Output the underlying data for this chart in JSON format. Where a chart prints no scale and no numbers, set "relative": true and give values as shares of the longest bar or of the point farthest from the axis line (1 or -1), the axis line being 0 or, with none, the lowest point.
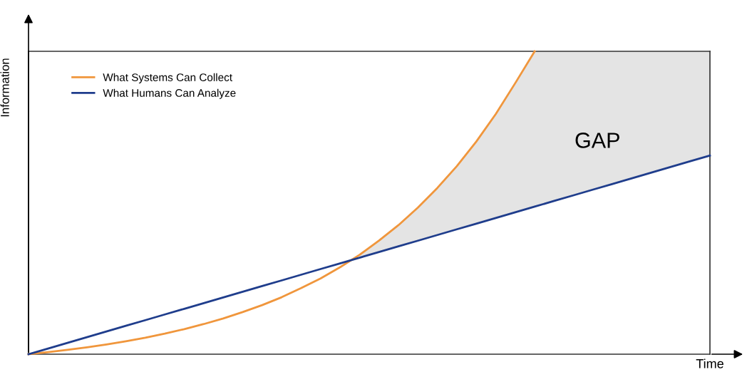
{
  "chart_data": {
    "type": "line",
    "relative": true,
    "xlabel": "Time",
    "ylabel": "Information",
    "categories": [
      null,
      null,
      null,
      null,
      null,
      null,
      null,
      null,
      null,
      null,
      null,
      null,
      null,
      null,
      null,
      null,
      null,
      null,
      null,
      null,
      null,
      null,
      null,
      null,
      null,
      null,
      null,
      null,
      null,
      null,
      null,
      null,
      null,
      null,
      null,
      null
    ],
    "series": [
      {
        "name": "What Systems Can Collect",
        "color": "#f0963c",
        "values": [
          0,
          0.0067,
          0.0143,
          0.0227,
          0.0321,
          0.0427,
          0.0545,
          0.0679,
          0.0828,
          0.0995,
          0.118,
          0.139,
          0.162,
          0.188,
          0.218,
          0.25,
          0.287,
          0.328,
          0.375,
          0.426,
          0.484,
          0.549,
          0.621,
          0.702,
          0.793,
          0.895,
          1.0,
          null,
          null,
          null,
          null,
          null,
          null,
          null,
          null,
          null
        ]
      },
      {
        "name": "What Humans Can Analyze",
        "color": "#1f3d8c",
        "values": [
          0,
          0.0187,
          0.0375,
          0.0562,
          0.075,
          0.0937,
          0.1124,
          0.1312,
          0.1499,
          0.1687,
          0.1874,
          0.2061,
          0.2249,
          0.2436,
          0.2624,
          0.2811,
          0.2998,
          0.3186,
          0.3373,
          0.3561,
          0.3748,
          0.3935,
          0.4123,
          0.431,
          0.4498,
          0.4685,
          0.4872,
          0.506,
          0.5247,
          0.5435,
          0.5622,
          0.5809,
          0.5997,
          0.6184,
          0.6372,
          0.656
        ],
        "lower": [
          null,
          null,
          null,
          null,
          null,
          null,
          null,
          null,
          null,
          null,
          null,
          null,
          null,
          null,
          null,
          null,
          null,
          0.3186,
          0.3373,
          0.3561,
          0.3748,
          0.3935,
          0.4123,
          0.431,
          0.4498,
          0.4685,
          0.4872,
          0.506,
          0.5247,
          0.5435,
          0.5622,
          0.5809,
          0.5997,
          0.6184,
          0.6372,
          0.656
        ],
        "upper": [
          null,
          null,
          null,
          null,
          null,
          null,
          null,
          null,
          null,
          null,
          null,
          null,
          null,
          null,
          null,
          null,
          null,
          0.328,
          0.375,
          0.426,
          0.484,
          0.549,
          0.621,
          0.702,
          0.793,
          0.895,
          1.0,
          1.0,
          1.0,
          1.0,
          1.0,
          1.0,
          1.0,
          1.0,
          1.0,
          1.0
        ]
      }
    ],
    "annotations": [
      "GAP"
    ],
    "legend": "top left"
  }
}
